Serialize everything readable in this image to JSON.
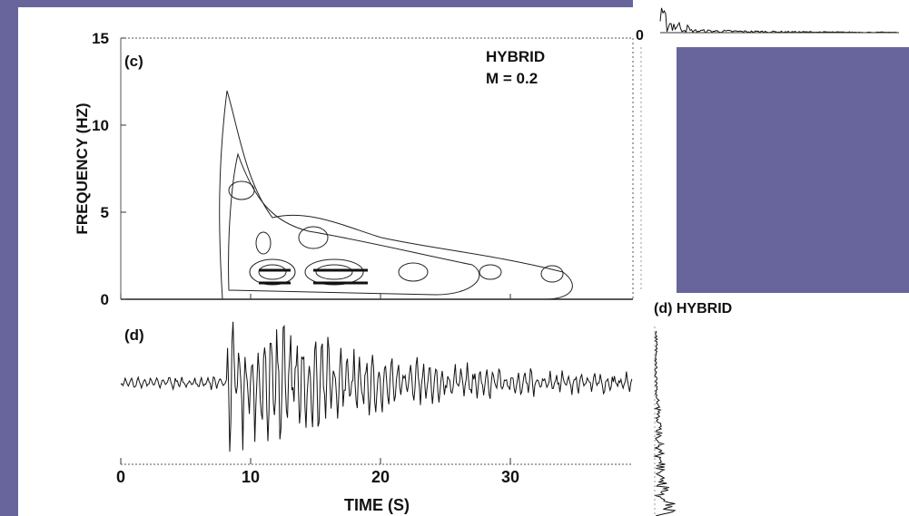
{
  "panel_c": {
    "label": "(c)",
    "annotation": [
      "HYBRID",
      "M = 0.2"
    ],
    "y_axis_label": "FREQUENCY (HZ)",
    "yticks": [
      0,
      5,
      10,
      15
    ]
  },
  "panel_d": {
    "label": "(d)"
  },
  "x_axis": {
    "label": "TIME (S)",
    "ticks": [
      0,
      10,
      20,
      30
    ]
  },
  "right_top": {
    "tick": 0
  },
  "right_bottom": {
    "label": "(d) HYBRID"
  }
}
